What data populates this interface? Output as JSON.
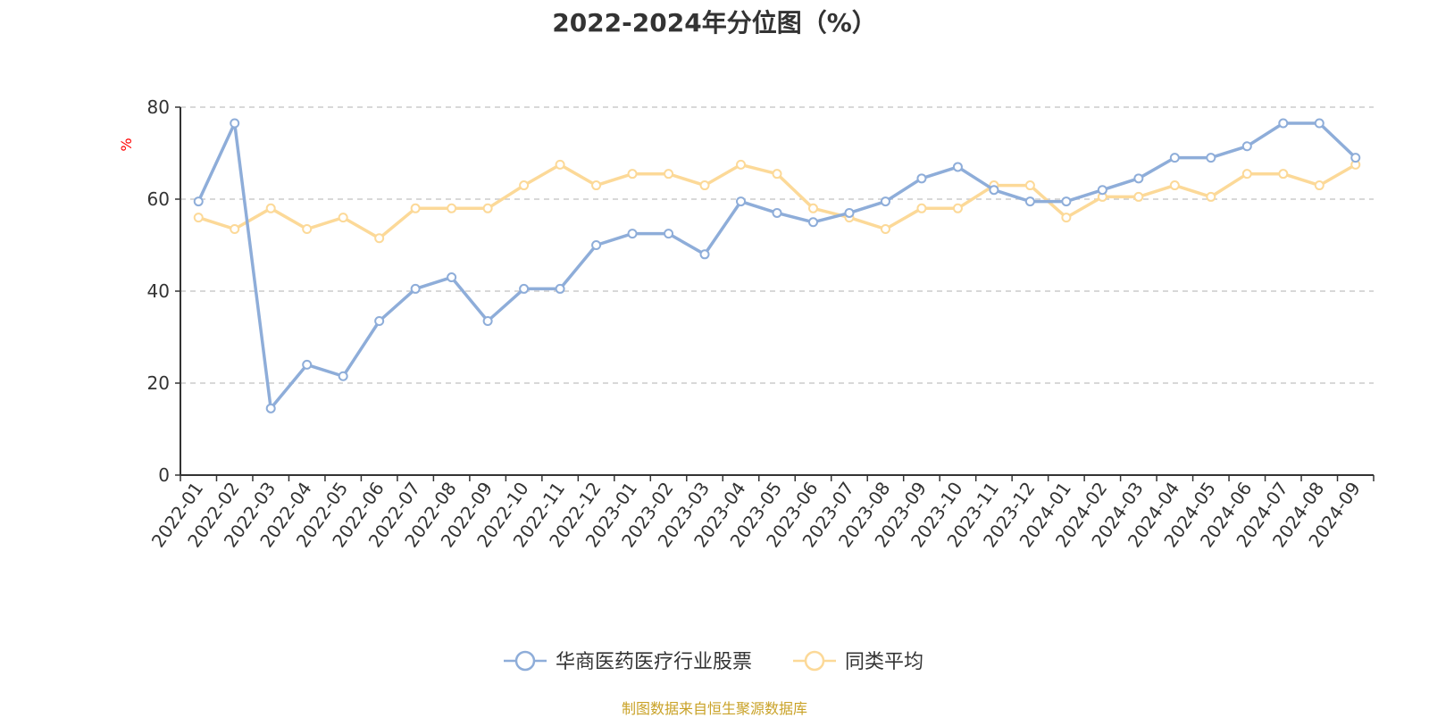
{
  "title": "2022-2024年分位图（%）",
  "source_note": "制图数据来自恒生聚源数据库",
  "colors": {
    "series_fund": "#8eadd9",
    "series_avg": "#fcd998",
    "axis": "#333333",
    "grid": "#cccccc",
    "unit": "#ff0000",
    "source": "#c9a227"
  },
  "chart_data": {
    "type": "line",
    "title": "2022-2024年分位图（%）",
    "xlabel": "",
    "ylabel": "%",
    "ylim": [
      0,
      80
    ],
    "yticks": [
      0,
      20,
      40,
      60,
      80
    ],
    "grid": true,
    "legend_position": "bottom-center",
    "x": [
      "2022-01",
      "2022-02",
      "2022-03",
      "2022-04",
      "2022-05",
      "2022-06",
      "2022-07",
      "2022-08",
      "2022-09",
      "2022-10",
      "2022-11",
      "2022-12",
      "2023-01",
      "2023-02",
      "2023-03",
      "2023-04",
      "2023-05",
      "2023-06",
      "2023-07",
      "2023-08",
      "2023-09",
      "2023-10",
      "2023-11",
      "2023-12",
      "2024-01",
      "2024-02",
      "2024-03",
      "2024-04",
      "2024-05",
      "2024-06",
      "2024-07",
      "2024-08",
      "2024-09"
    ],
    "series": [
      {
        "name": "华商医药医疗行业股票",
        "values": [
          59.5,
          76.5,
          14.5,
          24,
          21.5,
          33.5,
          40.5,
          43,
          33.5,
          40.5,
          40.5,
          50,
          52.5,
          52.5,
          48,
          59.5,
          57,
          55,
          57,
          59.5,
          64.5,
          67,
          62,
          59.5,
          59.5,
          62,
          64.5,
          69,
          69,
          71.5,
          76.5,
          76.5,
          69
        ]
      },
      {
        "name": "同类平均",
        "values": [
          56,
          53.5,
          58,
          53.5,
          56,
          51.5,
          58,
          58,
          58,
          63,
          67.5,
          63,
          65.5,
          65.5,
          63,
          67.5,
          65.5,
          58,
          56,
          53.5,
          58,
          58,
          63,
          63,
          56,
          60.5,
          60.5,
          63,
          60.5,
          65.5,
          65.5,
          63,
          67.5
        ]
      }
    ]
  }
}
